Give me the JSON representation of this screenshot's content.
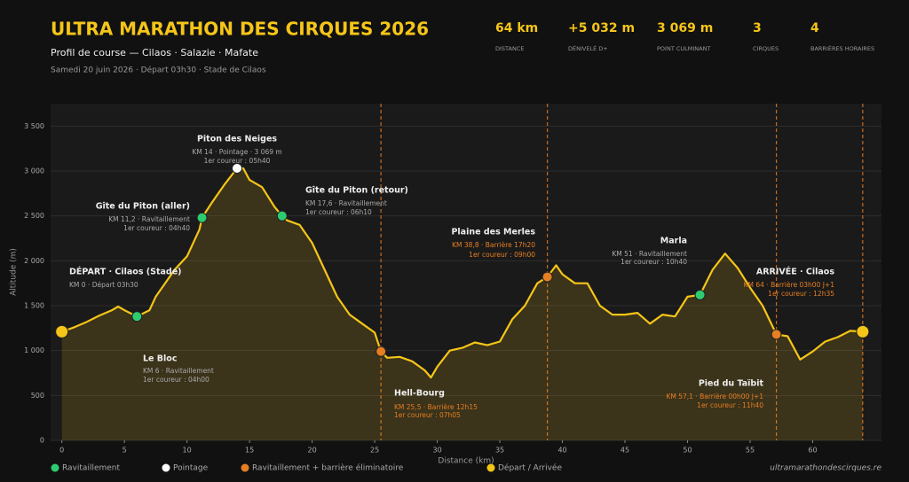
{
  "header": {
    "title": "ULTRA MARATHON DES CIRQUES 2026",
    "subtitle": "Profil de course — Cilaos · Salazie · Mafate",
    "date": "Samedi 20 juin 2026 · Départ 03h30 · Stade de Cilaos",
    "stats": [
      {
        "value": "64 km",
        "label": "DISTANCE"
      },
      {
        "value": "+5 032 m",
        "label": "DÉNIVELÉ D+"
      },
      {
        "value": "3 069 m",
        "label": "POINT CULMINANT"
      },
      {
        "value": "3",
        "label": "CIRQUES"
      },
      {
        "value": "4",
        "label": "BARRIÈRES HORAIRES"
      }
    ]
  },
  "chart_data": {
    "type": "area",
    "x_label": "Distance (km)",
    "y_label": "Altitude (m)",
    "line_color": "#f5c518",
    "grid": true,
    "xlim": [
      -0.9,
      65.5
    ],
    "ylim": [
      0,
      3750
    ],
    "xticks": [
      0,
      5,
      10,
      15,
      20,
      25,
      30,
      35,
      40,
      45,
      50,
      55,
      60
    ],
    "yticks": [
      0,
      {
        "value": 500,
        "label": "500"
      },
      {
        "value": 1000,
        "label": "1 000"
      },
      {
        "value": 1500,
        "label": "1 500"
      },
      {
        "value": 2000,
        "label": "2 000"
      },
      {
        "value": 2500,
        "label": "2 500"
      },
      {
        "value": 3000,
        "label": "3 000"
      },
      {
        "value": 3500,
        "label": "3 500"
      }
    ],
    "profile": {
      "km": [
        0,
        1,
        2,
        3,
        4,
        4.5,
        5,
        6,
        7,
        7.5,
        8,
        9,
        10,
        11,
        11.2,
        12,
        13,
        14,
        14.5,
        15,
        16,
        17,
        17.6,
        18,
        19,
        20,
        21,
        22,
        23,
        24,
        25,
        25.5,
        26,
        27,
        28,
        29,
        29.5,
        30,
        31,
        32,
        33,
        34,
        35,
        36,
        37,
        38,
        38.8,
        39.5,
        40,
        41,
        42,
        43,
        44,
        45,
        46,
        47,
        48,
        49,
        50,
        51,
        52,
        53,
        54,
        55,
        56,
        57.1,
        58,
        59,
        60,
        61,
        62,
        63,
        64
      ],
      "elevation": [
        1210,
        1260,
        1320,
        1390,
        1450,
        1490,
        1450,
        1380,
        1450,
        1600,
        1700,
        1900,
        2050,
        2350,
        2480,
        2650,
        2850,
        3030,
        3030,
        2900,
        2820,
        2600,
        2500,
        2450,
        2400,
        2200,
        1900,
        1600,
        1400,
        1300,
        1200,
        990,
        920,
        930,
        880,
        780,
        700,
        820,
        1000,
        1030,
        1090,
        1060,
        1100,
        1350,
        1500,
        1750,
        1820,
        1950,
        1850,
        1750,
        1750,
        1500,
        1400,
        1400,
        1420,
        1300,
        1400,
        1380,
        1600,
        1620,
        1900,
        2080,
        1920,
        1700,
        1500,
        1180,
        1160,
        900,
        990,
        1100,
        1150,
        1220,
        1210
      ]
    },
    "legend": [
      {
        "kind": "ravito",
        "name": "Ravitaillement",
        "color": "#2ecc71"
      },
      {
        "kind": "pointage",
        "name": "Pointage",
        "color": "#ffffff"
      },
      {
        "kind": "barrier",
        "name": "Ravitaillement + barrière éliminatoire",
        "color": "#e67e22"
      },
      {
        "kind": "start",
        "name": "Départ / Arrivée",
        "color": "#f5c518"
      }
    ],
    "checkpoints": [
      {
        "name": "DÉPART · Cilaos (Stade)",
        "km": 0,
        "elevation": 1210,
        "kind": "start",
        "barrier": false,
        "details": [
          "KM 0 · Départ 03h30"
        ]
      },
      {
        "name": "Le Bloc",
        "km": 6,
        "elevation": 1380,
        "kind": "ravito",
        "barrier": false,
        "details": [
          "KM 6 · Ravitaillement",
          "1er coureur : 04h00"
        ]
      },
      {
        "name": "Gîte du Piton (aller)",
        "km": 11.2,
        "elevation": 2480,
        "kind": "ravito",
        "barrier": false,
        "details": [
          "KM 11,2 · Ravitaillement",
          "1er coureur : 04h40"
        ]
      },
      {
        "name": "Piton des Neiges",
        "km": 14,
        "elevation": 3030,
        "kind": "pointage",
        "barrier": false,
        "details": [
          "KM 14 · Pointage · 3 069 m",
          "1er coureur : 05h40"
        ]
      },
      {
        "name": "Gîte du Piton (retour)",
        "km": 17.6,
        "elevation": 2500,
        "kind": "ravito",
        "barrier": false,
        "details": [
          "KM 17,6 · Ravitaillement",
          "1er coureur : 06h10"
        ]
      },
      {
        "name": "Hell-Bourg",
        "km": 25.5,
        "elevation": 990,
        "kind": "barrier",
        "barrier": true,
        "details": [
          "KM 25,5 · Barrière 12h15",
          "1er coureur : 07h05"
        ]
      },
      {
        "name": "Plaine des Merles",
        "km": 38.8,
        "elevation": 1820,
        "kind": "barrier",
        "barrier": true,
        "details": [
          "KM 38,8 · Barrière 17h20",
          "1er coureur : 09h00"
        ]
      },
      {
        "name": "Marla",
        "km": 51,
        "elevation": 1620,
        "kind": "ravito",
        "barrier": false,
        "details": [
          "KM 51 · Ravitaillement",
          "1er coureur : 10h40"
        ]
      },
      {
        "name": "Pied du Taïbit",
        "km": 57.1,
        "elevation": 1180,
        "kind": "barrier",
        "barrier": true,
        "details": [
          "KM 57,1 · Barrière 00h00 J+1",
          "1er coureur : 11h40"
        ]
      },
      {
        "name": "ARRIVÉE · Cilaos",
        "km": 64,
        "elevation": 1210,
        "kind": "start",
        "barrier": true,
        "details": [
          "KM 64 · Barrière 03h00 J+1",
          "1er coureur : 12h35"
        ]
      }
    ],
    "footer": "ultramarathondescirques.re"
  }
}
